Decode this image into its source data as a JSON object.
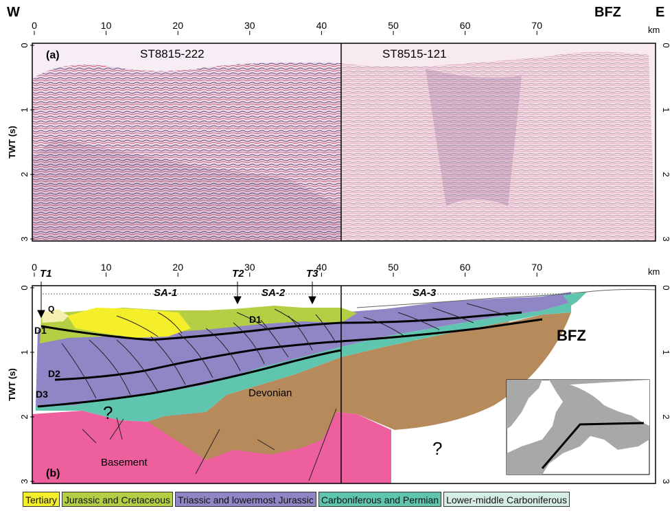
{
  "header": {
    "west": "W",
    "east": "E",
    "fault_zone": "BFZ",
    "unit_km": "km"
  },
  "colors": {
    "tertiary": "#f5ee2a",
    "jurassic_cretaceous": "#b5cf45",
    "triassic_jurassic": "#8f86c6",
    "carboniferous_permian": "#5fc5ae",
    "lower_middle_carboniferous": "#d6ece6",
    "devonian": "#b78a5c",
    "basement": "#ee5f9e",
    "quaternary": "#f4f0b0"
  },
  "panel_a": {
    "label": "(a)",
    "line_left": "ST8815-222",
    "line_right": "ST8515-121",
    "x_ticks": [
      "0",
      "10",
      "20",
      "30",
      "40",
      "50",
      "60",
      "70"
    ],
    "y_ticks": [
      "0",
      "1",
      "2",
      "3"
    ],
    "y_label": "TWT (s)",
    "km": "km"
  },
  "panel_b": {
    "label": "(b)",
    "x_ticks": [
      "0",
      "10",
      "20",
      "30",
      "40",
      "50",
      "60",
      "70"
    ],
    "y_ticks": [
      "0",
      "1",
      "2",
      "3"
    ],
    "y_label": "TWT (s)",
    "km": "km",
    "transects": [
      "T1",
      "T2",
      "T3"
    ],
    "segments": [
      "SA-1",
      "SA-2",
      "SA-3"
    ],
    "bfz": "BFZ",
    "units": {
      "q": "Q",
      "d1": "D1",
      "d1b": "D1",
      "d2": "D2",
      "d3": "D3",
      "devonian": "Devonian",
      "basement": "Basement",
      "unknown_left": "?",
      "unknown_right": "?"
    }
  },
  "legend": [
    {
      "label": "Tertiary",
      "color": "#f5ee2a"
    },
    {
      "label": "Jurassic and Cretaceous",
      "color": "#b5cf45"
    },
    {
      "label": "Triassic and lowermost Jurassic",
      "color": "#8f86c6"
    },
    {
      "label": "Carboniferous and Permian",
      "color": "#5fc5ae"
    },
    {
      "label": "Lower-middle Carboniferous",
      "color": "#d6ece6"
    }
  ]
}
